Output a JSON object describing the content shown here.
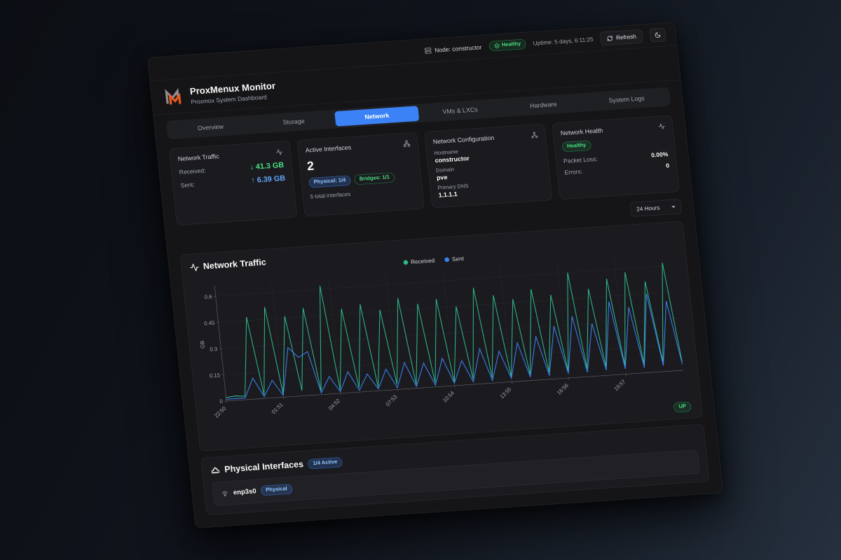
{
  "topbar": {
    "node_label": "Node: constructor",
    "health_badge": "Healthy",
    "uptime": "Uptime: 5 days, 6:11:25",
    "refresh_label": "Refresh"
  },
  "header": {
    "title": "ProxMenux Monitor",
    "subtitle": "Proxmox System Dashboard"
  },
  "tabs": {
    "items": [
      {
        "label": "Overview"
      },
      {
        "label": "Storage"
      },
      {
        "label": "Network"
      },
      {
        "label": "VMs & LXCs"
      },
      {
        "label": "Hardware"
      },
      {
        "label": "System Logs"
      }
    ],
    "active": "Network"
  },
  "cards": {
    "traffic": {
      "title": "Network Traffic",
      "received_label": "Received:",
      "received_value": "↓ 41.3 GB",
      "sent_label": "Sent:",
      "sent_value": "↑ 6.39 GB"
    },
    "interfaces": {
      "title": "Active Interfaces",
      "count": "2",
      "physical_badge": "Physical: 1/4",
      "bridges_badge": "Bridges: 1/1",
      "total": "5 total interfaces"
    },
    "config": {
      "title": "Network Configuration",
      "hostname_label": "Hostname",
      "hostname": "constructor",
      "domain_label": "Domain",
      "domain": "pve",
      "dns_label": "Primary DNS",
      "dns": "1.1.1.1"
    },
    "health": {
      "title": "Network Health",
      "status_badge": "Healthy",
      "packet_loss_label": "Packet Loss:",
      "packet_loss": "0.00%",
      "errors_label": "Errors:",
      "errors": "0"
    }
  },
  "time_range": {
    "selected": "24 Hours"
  },
  "chart_card": {
    "title": "Network Traffic",
    "up_badge": "UP"
  },
  "chart_data": {
    "type": "line",
    "title": "Network Traffic",
    "xlabel": "",
    "ylabel": "GB",
    "ylim": [
      0,
      0.66
    ],
    "yticks": [
      0,
      0.15,
      0.3,
      0.45,
      0.6
    ],
    "grid": true,
    "legend_position": "top",
    "x_labels": [
      "22:50",
      "01:51",
      "04:52",
      "07:53",
      "10:54",
      "13:55",
      "16:56",
      "19:57"
    ],
    "label_indices": [
      0,
      6,
      12,
      18,
      24,
      30,
      36,
      42
    ],
    "series": [
      {
        "name": "Received",
        "color": "#2eb88a",
        "values": [
          0.02,
          0.025,
          0.02,
          0.47,
          0.02,
          0.52,
          0.02,
          0.46,
          0.03,
          0.5,
          0.02,
          0.62,
          0.02,
          0.48,
          0.025,
          0.5,
          0.02,
          0.46,
          0.03,
          0.52,
          0.02,
          0.48,
          0.025,
          0.5,
          0.02,
          0.45,
          0.03,
          0.55,
          0.03,
          0.5,
          0.03,
          0.47,
          0.035,
          0.52,
          0.04,
          0.48,
          0.04,
          0.6,
          0.045,
          0.5,
          0.05,
          0.55,
          0.05,
          0.58,
          0.05,
          0.52,
          0.055,
          0.62,
          0.05
        ]
      },
      {
        "name": "Sent",
        "color": "#3b82f6",
        "values": [
          0.01,
          0.01,
          0.01,
          0.12,
          0.01,
          0.1,
          0.01,
          0.28,
          0.22,
          0.25,
          0.01,
          0.1,
          0.01,
          0.12,
          0.01,
          0.1,
          0.01,
          0.12,
          0.01,
          0.15,
          0.01,
          0.14,
          0.01,
          0.16,
          0.015,
          0.14,
          0.015,
          0.2,
          0.015,
          0.18,
          0.02,
          0.22,
          0.02,
          0.25,
          0.02,
          0.3,
          0.025,
          0.35,
          0.025,
          0.3,
          0.03,
          0.42,
          0.03,
          0.38,
          0.03,
          0.45,
          0.035,
          0.4,
          0.035
        ]
      }
    ]
  },
  "physical": {
    "title": "Physical Interfaces",
    "active_badge": "1/4 Active",
    "rows": [
      {
        "name": "enp3s0",
        "badge": "Physical"
      }
    ]
  },
  "colors": {
    "accent_blue": "#3b82f6",
    "green": "#4ade80",
    "chart_received": "#2eb88a",
    "chart_sent": "#3b82f6",
    "logo_orange": "#e4581f",
    "logo_gray": "#8b8b90"
  }
}
